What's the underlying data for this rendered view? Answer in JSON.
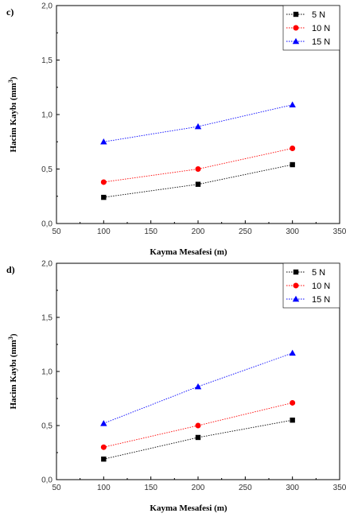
{
  "chart_data": [
    {
      "type": "line",
      "panel_label": "c)",
      "xlabel": "Kayma Mesafesi (m)",
      "ylabel_main": "Hacim Kaybı (mm",
      "ylabel_sup": "3",
      "ylabel_end": ")",
      "xlim": [
        50,
        350
      ],
      "ylim": [
        0,
        2
      ],
      "x_ticks": [
        50,
        100,
        150,
        200,
        250,
        300,
        350
      ],
      "x_tick_labels": [
        "50",
        "100",
        "150",
        "200",
        "250",
        "300",
        "350"
      ],
      "y_ticks": [
        0,
        0.5,
        1.0,
        1.5,
        2.0
      ],
      "y_tick_labels": [
        "0,0",
        "0,5",
        "1,0",
        "1,5",
        "2,0"
      ],
      "grid": false,
      "legend_position": "top-right",
      "x": [
        100,
        200,
        300
      ],
      "series": [
        {
          "name": "5 N",
          "values": [
            0.24,
            0.36,
            0.54
          ],
          "color": "#000000",
          "marker": "square"
        },
        {
          "name": "10 N",
          "values": [
            0.38,
            0.5,
            0.69
          ],
          "color": "#ff0000",
          "marker": "circle"
        },
        {
          "name": "15 N",
          "values": [
            0.75,
            0.89,
            1.09
          ],
          "color": "#0000ff",
          "marker": "triangle"
        }
      ]
    },
    {
      "type": "line",
      "panel_label": "d)",
      "xlabel": "Kayma Mesafesi (m)",
      "ylabel_main": "Hacim Kaybı (mm",
      "ylabel_sup": "3",
      "ylabel_end": ")",
      "xlim": [
        50,
        350
      ],
      "ylim": [
        0,
        2
      ],
      "x_ticks": [
        50,
        100,
        150,
        200,
        250,
        300,
        350
      ],
      "x_tick_labels": [
        "50",
        "100",
        "150",
        "200",
        "250",
        "300",
        "350"
      ],
      "y_ticks": [
        0,
        0.5,
        1.0,
        1.5,
        2.0
      ],
      "y_tick_labels": [
        "0,0",
        "0,5",
        "1,0",
        "1,5",
        "2,0"
      ],
      "grid": false,
      "legend_position": "top-right",
      "x": [
        100,
        200,
        300
      ],
      "series": [
        {
          "name": "5 N",
          "values": [
            0.19,
            0.39,
            0.55
          ],
          "color": "#000000",
          "marker": "square"
        },
        {
          "name": "10 N",
          "values": [
            0.3,
            0.5,
            0.71
          ],
          "color": "#ff0000",
          "marker": "circle"
        },
        {
          "name": "15 N",
          "values": [
            0.52,
            0.86,
            1.17
          ],
          "color": "#0000ff",
          "marker": "triangle"
        }
      ]
    }
  ]
}
